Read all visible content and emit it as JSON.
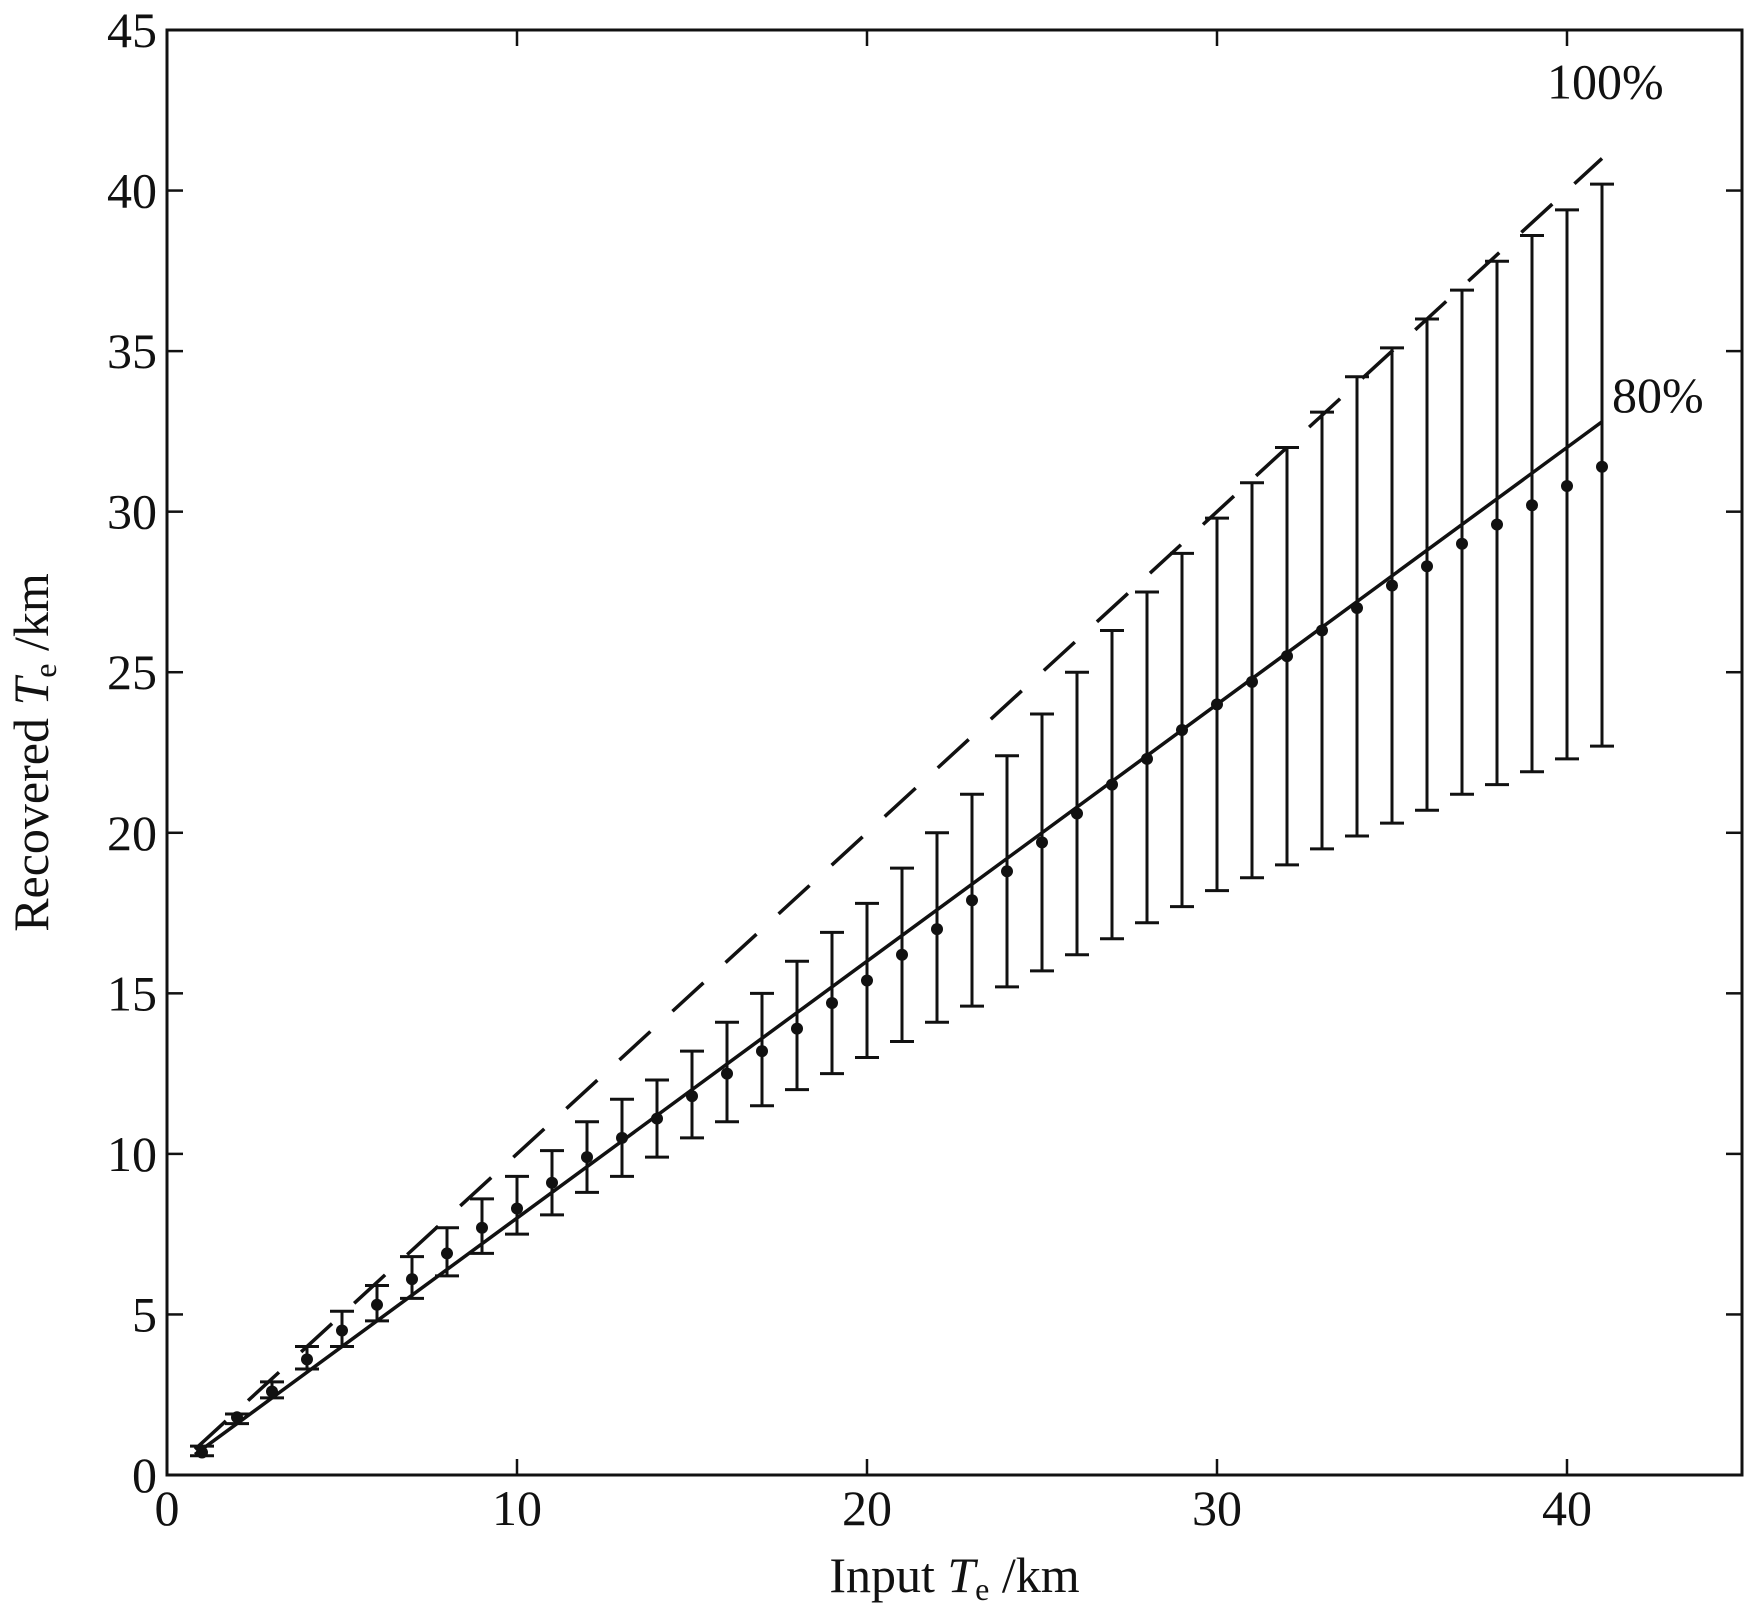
{
  "chart_data": {
    "type": "scatter",
    "xlabel": {
      "prefix": "Input ",
      "var": "T",
      "sub": "e",
      "suffix": " /km"
    },
    "ylabel": {
      "prefix": "Recovered ",
      "var": "T",
      "sub": "e",
      "suffix": " /km"
    },
    "xlim": [
      0,
      45
    ],
    "ylim": [
      0,
      45
    ],
    "xticks": [
      0,
      10,
      20,
      30,
      40
    ],
    "yticks": [
      0,
      5,
      10,
      15,
      20,
      25,
      30,
      35,
      40,
      45
    ],
    "grid": false,
    "reference_lines": [
      {
        "label": "100%",
        "slope": 1.0,
        "style": "dashed",
        "x": [
          0.8,
          41
        ]
      },
      {
        "label": "80%",
        "slope": 0.8,
        "style": "solid",
        "x": [
          0.8,
          41
        ]
      }
    ],
    "x": [
      1,
      2,
      3,
      4,
      5,
      6,
      7,
      8,
      9,
      10,
      11,
      12,
      13,
      14,
      15,
      16,
      17,
      18,
      19,
      20,
      21,
      22,
      23,
      24,
      25,
      26,
      27,
      28,
      29,
      30,
      31,
      32,
      33,
      34,
      35,
      36,
      37,
      38,
      39,
      40,
      41
    ],
    "y": [
      0.7,
      1.8,
      2.6,
      3.6,
      4.5,
      5.3,
      6.1,
      6.9,
      7.7,
      8.3,
      9.1,
      9.9,
      10.5,
      11.1,
      11.8,
      12.5,
      13.2,
      13.9,
      14.7,
      15.4,
      16.2,
      17.0,
      17.9,
      18.8,
      19.7,
      20.6,
      21.5,
      22.3,
      23.2,
      24.0,
      24.7,
      25.5,
      26.3,
      27.0,
      27.7,
      28.3,
      29.0,
      29.6,
      30.2,
      30.8,
      31.4
    ],
    "y_lower": [
      0.6,
      1.6,
      2.4,
      3.3,
      4.0,
      4.8,
      5.5,
      6.2,
      6.9,
      7.5,
      8.1,
      8.8,
      9.3,
      9.9,
      10.5,
      11.0,
      11.5,
      12.0,
      12.5,
      13.0,
      13.5,
      14.1,
      14.6,
      15.2,
      15.7,
      16.2,
      16.7,
      17.2,
      17.7,
      18.2,
      18.6,
      19.0,
      19.5,
      19.9,
      20.3,
      20.7,
      21.2,
      21.5,
      21.9,
      22.3,
      22.7
    ],
    "y_upper": [
      0.9,
      1.9,
      2.9,
      4.0,
      5.1,
      5.9,
      6.8,
      7.7,
      8.6,
      9.3,
      10.1,
      11.0,
      11.7,
      12.3,
      13.2,
      14.1,
      15.0,
      16.0,
      16.9,
      17.8,
      18.9,
      20.0,
      21.2,
      22.4,
      23.7,
      25.0,
      26.3,
      27.5,
      28.7,
      29.8,
      30.9,
      32.0,
      33.1,
      34.2,
      35.1,
      36.0,
      36.9,
      37.8,
      38.6,
      39.4,
      40.2
    ]
  }
}
